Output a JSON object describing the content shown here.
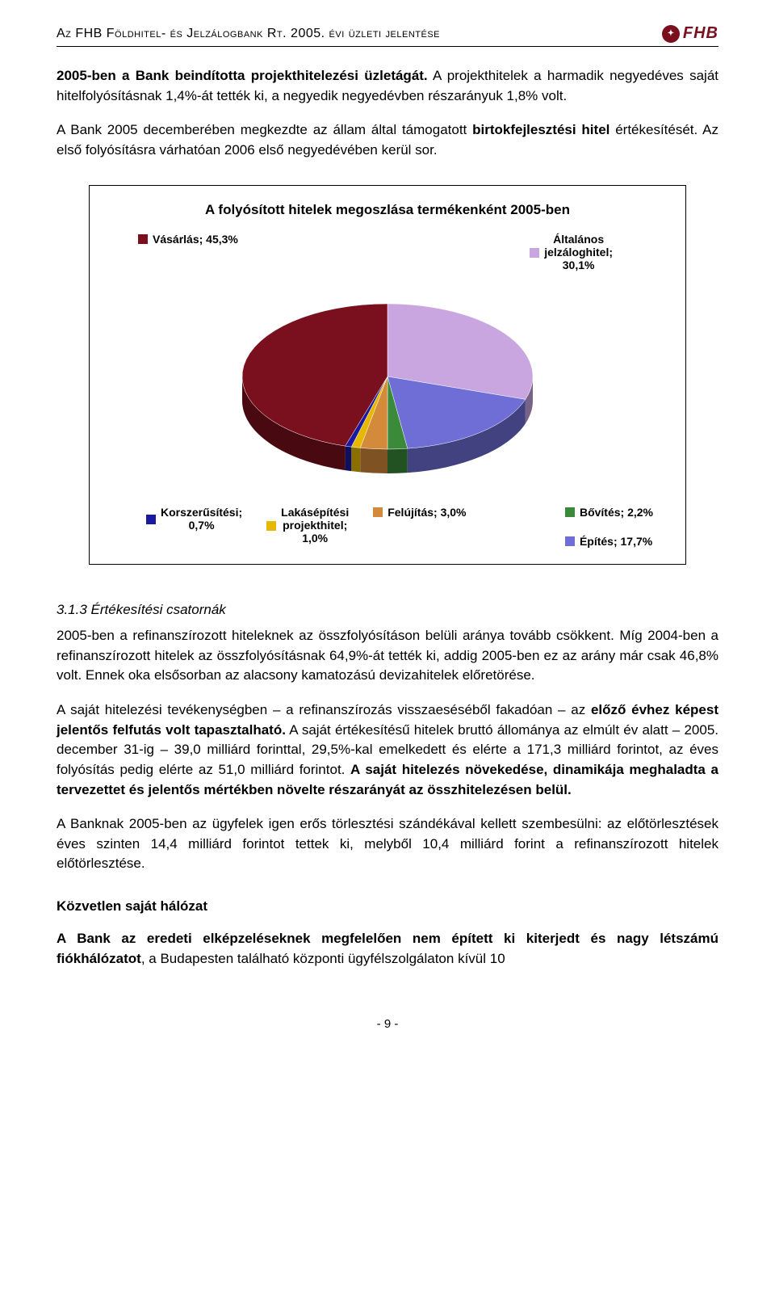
{
  "header": {
    "title": "Az FHB Földhitel- és Jelzálogbank Rt. 2005. évi üzleti jelentése",
    "logo_text": "FHB"
  },
  "para1_lead": "2005-ben a Bank beindította projekthitelezési üzletágát.",
  "para1_rest": " A projekthitelek a harmadik negyedéves saját hitelfolyósításnak 1,4%-át tették ki, a negyedik negyedévben részarányuk 1,8% volt.",
  "para2_a": "A Bank 2005 decemberében megkezdte az állam által támogatott ",
  "para2_bold": "birtokfejlesztési hitel",
  "para2_b": " értékesítését. Az első folyósításra várhatóan 2006 első negyedévében kerül sor.",
  "chart": {
    "title": "A folyósított hitelek megoszlása termékenként 2005-ben",
    "slices": [
      {
        "label": "Vásárlás; 45,3%",
        "value": 45.3,
        "color": "#7a0f1d"
      },
      {
        "label": "Általános jelzáloghitel; 30,1%",
        "value": 30.1,
        "color": "#c9a6e0"
      },
      {
        "label": "Építés; 17,7%",
        "value": 17.7,
        "color": "#6e6ed6"
      },
      {
        "label": "Felújítás; 3,0%",
        "value": 3.0,
        "color": "#d38a3a"
      },
      {
        "label": "Bővítés; 2,2%",
        "value": 2.2,
        "color": "#3a8a3a"
      },
      {
        "label": "Lakásépítési projekthitel; 1,0%",
        "value": 1.0,
        "color": "#e6b800"
      },
      {
        "label": "Korszerűsítési; 0,7%",
        "value": 0.7,
        "color": "#1a1aa0"
      }
    ],
    "legend_top_left": "Vásárlás; 45,3%",
    "legend_top_right_l1": "Általános",
    "legend_top_right_l2": "jelzáloghitel;",
    "legend_top_right_l3": "30,1%",
    "legend_bovites": "Bővítés; 2,2%",
    "legend_epites": "Építés; 17,7%",
    "legend_felujitas": "Felújítás; 3,0%",
    "legend_korszer_l1": "Korszerűsítési;",
    "legend_korszer_l2": "0,7%",
    "legend_lakas_l1": "Lakásépítési",
    "legend_lakas_l2": "projekthitel;",
    "legend_lakas_l3": "1,0%",
    "colors": {
      "vasarlas": "#7a0f1d",
      "jelzalog": "#c9a6e0",
      "epites": "#6e6ed6",
      "felujitas": "#d38a3a",
      "bovites": "#3a8a3a",
      "lakas": "#e6b800",
      "korszer": "#1a1aa0"
    },
    "background_color": "#ffffff",
    "border_color": "#000000",
    "font_size_title": 17,
    "font_size_legend": 14
  },
  "section_num": "3.1.3  Értékesítési csatornák",
  "para3": "2005-ben a refinanszírozott hiteleknek az összfolyósításon belüli aránya tovább csökkent. Míg 2004-ben a refinanszírozott hitelek az összfolyósításnak 64,9%-át tették ki, addig 2005-ben ez az arány már csak 46,8% volt. Ennek oka elsősorban az alacsony kamatozású devizahitelek előretörése.",
  "para4_a": "A saját hitelezési tevékenységben – a refinanszírozás visszaeséséből fakadóan – az ",
  "para4_bold1": "előző évhez képest jelentős felfutás volt tapasztalható.",
  "para4_b": " A saját értékesítésű hitelek bruttó állománya az elmúlt év alatt – 2005. december 31-ig – 39,0 milliárd forinttal, 29,5%-kal emelkedett és elérte a 171,3 milliárd forintot, az éves folyósítás pedig elérte az 51,0 milliárd forintot. ",
  "para4_bold2": "A saját hitelezés növekedése, dinamikája meghaladta a tervezettet és jelentős mértékben növelte részarányát az összhitelezésen belül.",
  "para5": "A Banknak 2005-ben az ügyfelek igen erős törlesztési szándékával kellett szembesülni: az előtörlesztések éves szinten 14,4 milliárd forintot tettek ki, melyből 10,4 milliárd forint a refinanszírozott hitelek előtörlesztése.",
  "subhead": "Közvetlen saját hálózat",
  "para6_bold": "A Bank az eredeti elképzeléseknek megfelelően nem épített ki kiterjedt és nagy létszámú fiókhálózatot",
  "para6_rest": ", a Budapesten található központi ügyfélszolgálaton kívül 10",
  "page_number": "- 9 -"
}
